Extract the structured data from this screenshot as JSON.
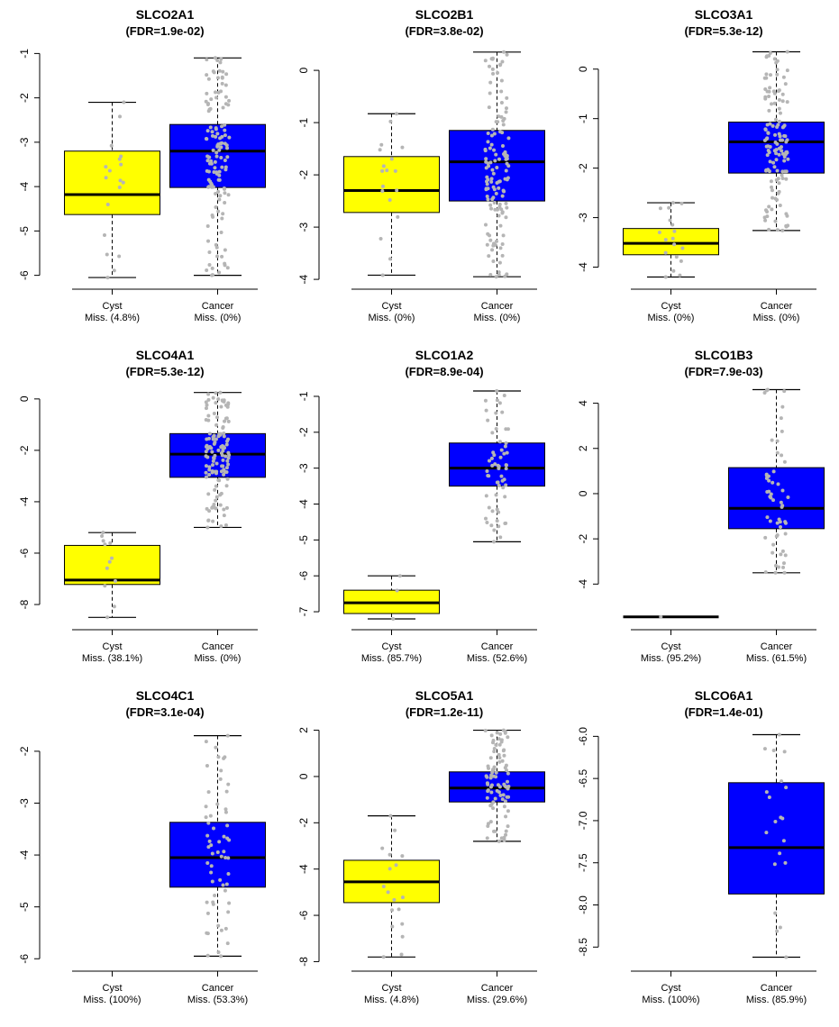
{
  "figure": {
    "colors": {
      "cyst": "#ffff00",
      "cancer": "#0000ff",
      "point": "#b5b5b5",
      "median": "#000000",
      "axis": "#000000"
    }
  },
  "chart_data": [
    {
      "type": "box",
      "gene": "SLCO2A1",
      "fdr_label": "(FDR=1.9e-02)",
      "y_ticks": [
        -1,
        -2,
        -3,
        -4,
        -5,
        -6
      ],
      "ylim": [
        -6.15,
        -0.85
      ],
      "groups": [
        {
          "name": "Cyst",
          "missing_label": "Miss. (4.8%)",
          "present": true,
          "whisker_low": -6.05,
          "q1": -4.63,
          "median": -4.18,
          "q3": -3.2,
          "whisker_high": -2.1,
          "point_count": 18
        },
        {
          "name": "Cancer",
          "missing_label": "Miss. (0%)",
          "present": true,
          "whisker_low": -6.0,
          "q1": -4.02,
          "median": -3.2,
          "q3": -2.6,
          "whisker_high": -1.1,
          "point_count": 130
        }
      ]
    },
    {
      "type": "box",
      "gene": "SLCO2B1",
      "fdr_label": "(FDR=3.8e-02)",
      "y_ticks": [
        0,
        -1,
        -2,
        -3,
        -4
      ],
      "ylim": [
        -4.05,
        0.45
      ],
      "groups": [
        {
          "name": "Cyst",
          "missing_label": "Miss. (0%)",
          "present": true,
          "whisker_low": -3.92,
          "q1": -2.72,
          "median": -2.3,
          "q3": -1.65,
          "whisker_high": -0.83,
          "point_count": 18
        },
        {
          "name": "Cancer",
          "missing_label": "Miss. (0%)",
          "present": true,
          "whisker_low": -3.95,
          "q1": -2.5,
          "median": -1.75,
          "q3": -1.15,
          "whisker_high": 0.35,
          "point_count": 130
        }
      ]
    },
    {
      "type": "box",
      "gene": "SLCO3A1",
      "fdr_label": "(FDR=5.3e-12)",
      "y_ticks": [
        0,
        -1,
        -2,
        -3,
        -4
      ],
      "ylim": [
        -4.3,
        0.45
      ],
      "groups": [
        {
          "name": "Cyst",
          "missing_label": "Miss. (0%)",
          "present": true,
          "whisker_low": -4.2,
          "q1": -3.75,
          "median": -3.52,
          "q3": -3.22,
          "whisker_high": -2.7,
          "point_count": 18
        },
        {
          "name": "Cancer",
          "missing_label": "Miss. (0%)",
          "present": true,
          "whisker_low": -3.26,
          "q1": -2.1,
          "median": -1.47,
          "q3": -1.07,
          "whisker_high": 0.35,
          "point_count": 130
        }
      ]
    },
    {
      "type": "box",
      "gene": "SLCO4A1",
      "fdr_label": "(FDR=5.3e-12)",
      "y_ticks": [
        0,
        -2,
        -4,
        -6,
        -8
      ],
      "ylim": [
        -8.7,
        0.45
      ],
      "groups": [
        {
          "name": "Cyst",
          "missing_label": "Miss. (38.1%)",
          "present": true,
          "whisker_low": -8.5,
          "q1": -7.22,
          "median": -7.05,
          "q3": -5.7,
          "whisker_high": -5.2,
          "point_count": 12
        },
        {
          "name": "Cancer",
          "missing_label": "Miss. (0%)",
          "present": true,
          "whisker_low": -5.0,
          "q1": -3.05,
          "median": -2.15,
          "q3": -1.35,
          "whisker_high": 0.25,
          "point_count": 130
        }
      ]
    },
    {
      "type": "box",
      "gene": "SLCO1A2",
      "fdr_label": "(FDR=8.9e-04)",
      "y_ticks": [
        -1,
        -2,
        -3,
        -4,
        -5,
        -6,
        -7
      ],
      "ylim": [
        -7.3,
        -0.75
      ],
      "groups": [
        {
          "name": "Cyst",
          "missing_label": "Miss. (85.7%)",
          "present": true,
          "whisker_low": -7.2,
          "q1": -7.05,
          "median": -6.75,
          "q3": -6.4,
          "whisker_high": -6.0,
          "point_count": 3
        },
        {
          "name": "Cancer",
          "missing_label": "Miss. (52.6%)",
          "present": true,
          "whisker_low": -5.05,
          "q1": -3.5,
          "median": -3.0,
          "q3": -2.3,
          "whisker_high": -0.85,
          "point_count": 60
        }
      ]
    },
    {
      "type": "box",
      "gene": "SLCO1B3",
      "fdr_label": "(FDR=7.9e-03)",
      "y_ticks": [
        4,
        2,
        0,
        -2,
        -4
      ],
      "ylim": [
        -5.7,
        4.7
      ],
      "groups": [
        {
          "name": "Cyst",
          "missing_label": "Miss. (95.2%)",
          "present": true,
          "whisker_low": -5.45,
          "q1": -5.45,
          "median": -5.45,
          "q3": -5.45,
          "whisker_high": -5.45,
          "point_count": 1
        },
        {
          "name": "Cancer",
          "missing_label": "Miss. (61.5%)",
          "present": true,
          "whisker_low": -3.5,
          "q1": -1.55,
          "median": -0.65,
          "q3": 1.15,
          "whisker_high": 4.6,
          "point_count": 55
        }
      ]
    },
    {
      "type": "box",
      "gene": "SLCO4C1",
      "fdr_label": "(FDR=3.1e-04)",
      "y_ticks": [
        -2,
        -3,
        -4,
        -5,
        -6
      ],
      "ylim": [
        -6.1,
        -1.55
      ],
      "groups": [
        {
          "name": "Cyst",
          "missing_label": "Miss. (100%)",
          "present": false
        },
        {
          "name": "Cancer",
          "missing_label": "Miss. (53.3%)",
          "present": true,
          "whisker_low": -5.95,
          "q1": -4.62,
          "median": -4.05,
          "q3": -3.37,
          "whisker_high": -1.7,
          "point_count": 60
        }
      ]
    },
    {
      "type": "box",
      "gene": "SLCO5A1",
      "fdr_label": "(FDR=1.2e-11)",
      "y_ticks": [
        2,
        0,
        -2,
        -4,
        -6,
        -8
      ],
      "ylim": [
        -8.1,
        2.1
      ],
      "groups": [
        {
          "name": "Cyst",
          "missing_label": "Miss. (4.8%)",
          "present": true,
          "whisker_low": -7.8,
          "q1": -5.45,
          "median": -4.55,
          "q3": -3.62,
          "whisker_high": -1.7,
          "point_count": 18
        },
        {
          "name": "Cancer",
          "missing_label": "Miss. (29.6%)",
          "present": true,
          "whisker_low": -2.8,
          "q1": -1.1,
          "median": -0.5,
          "q3": 0.2,
          "whisker_high": 2.0,
          "point_count": 90
        }
      ]
    },
    {
      "type": "box",
      "gene": "SLCO6A1",
      "fdr_label": "(FDR=1.4e-01)",
      "y_ticks": [
        "-6.0",
        "-6.5",
        "-7.0",
        "-7.5",
        "-8.0",
        "-8.5"
      ],
      "ylim": [
        -8.7,
        -5.9
      ],
      "groups": [
        {
          "name": "Cyst",
          "missing_label": "Miss. (100%)",
          "present": false
        },
        {
          "name": "Cancer",
          "missing_label": "Miss. (85.9%)",
          "present": true,
          "whisker_low": -8.62,
          "q1": -7.87,
          "median": -7.32,
          "q3": -6.55,
          "whisker_high": -5.98,
          "point_count": 20
        }
      ]
    }
  ]
}
